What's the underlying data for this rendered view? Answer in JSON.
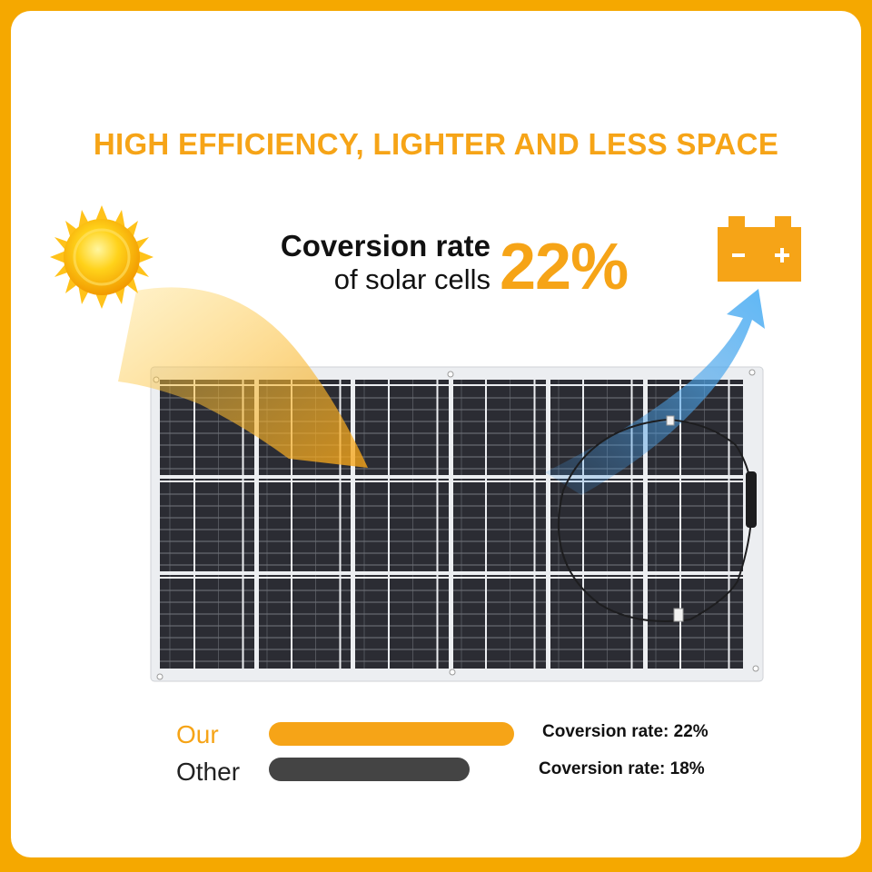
{
  "headline": "HIGH EFFICIENCY, LIGHTER AND LESS SPACE",
  "conversion": {
    "line1": "Coversion rate",
    "line2": "of solar cells",
    "value": "22%"
  },
  "comparison": [
    {
      "label": "Our",
      "rate_text": "Coversion rate: 22%",
      "rate": 22,
      "color": "#f6a417"
    },
    {
      "label": "Other",
      "rate_text": "Coversion rate: 18%",
      "rate": 18,
      "color": "#444444"
    }
  ],
  "colors": {
    "accent": "#f6a417",
    "frame": "#f5a800",
    "arrow_blue": "#4a9ee0",
    "panel_cell": "#2b2b31"
  },
  "icons": [
    "sun-icon",
    "battery-icon",
    "solar-panel",
    "energy-arrow",
    "cable"
  ]
}
